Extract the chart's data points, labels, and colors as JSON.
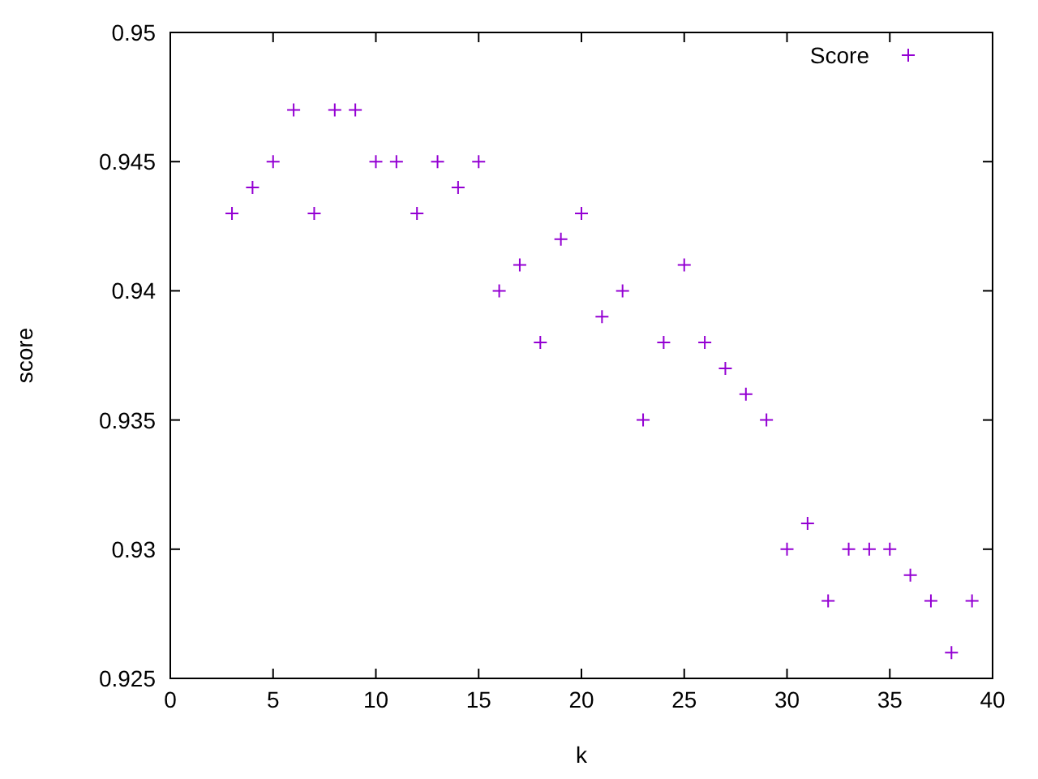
{
  "chart_data": {
    "type": "scatter",
    "xlabel": "k",
    "ylabel": "score",
    "x": [
      3,
      4,
      5,
      6,
      7,
      8,
      9,
      10,
      11,
      12,
      13,
      14,
      15,
      16,
      17,
      18,
      19,
      20,
      21,
      22,
      23,
      24,
      25,
      26,
      27,
      28,
      29,
      30,
      31,
      32,
      33,
      34,
      35,
      36,
      37,
      38,
      39
    ],
    "series": [
      {
        "name": "Score",
        "color": "#9400d3",
        "values": [
          0.943,
          0.944,
          0.945,
          0.947,
          0.943,
          0.947,
          0.947,
          0.945,
          0.945,
          0.943,
          0.945,
          0.944,
          0.945,
          0.94,
          0.941,
          0.938,
          0.942,
          0.943,
          0.939,
          0.94,
          0.935,
          0.938,
          0.941,
          0.938,
          0.937,
          0.936,
          0.935,
          0.93,
          0.931,
          0.928,
          0.93,
          0.93,
          0.93,
          0.929,
          0.928,
          0.926,
          0.928
        ]
      }
    ],
    "xlim": [
      0,
      40
    ],
    "xticks": [
      0,
      5,
      10,
      15,
      20,
      25,
      30,
      35,
      40
    ],
    "ylim": [
      0.925,
      0.95
    ],
    "yticks": [
      {
        "value": 0.925,
        "label": "0.925"
      },
      {
        "value": 0.93,
        "label": "0.93"
      },
      {
        "value": 0.935,
        "label": "0.935"
      },
      {
        "value": 0.94,
        "label": "0.94"
      },
      {
        "value": 0.945,
        "label": "0.945"
      },
      {
        "value": 0.95,
        "label": "0.95"
      }
    ],
    "marker": "cross",
    "legend": "top right",
    "grid": false
  }
}
